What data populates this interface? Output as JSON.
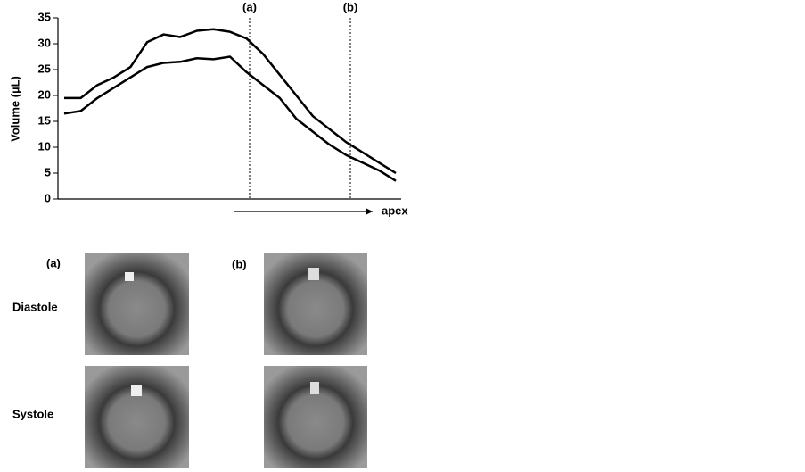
{
  "chart_data": {
    "type": "line",
    "y_label": "Volume (µL)",
    "categories": [
      null,
      null,
      null,
      null,
      null,
      null,
      null,
      null,
      null,
      null,
      null,
      null,
      null,
      null,
      null,
      null,
      null,
      null,
      null,
      null,
      null
    ],
    "series": [
      {
        "color": "#000000",
        "values": [
          19.5,
          19.5,
          22,
          23.5,
          25.5,
          30.3,
          31.8,
          31.3,
          32.5,
          32.8,
          32.3,
          31,
          28,
          24,
          20,
          16,
          13.5,
          11,
          9,
          7,
          5
        ]
      },
      {
        "color": "#000000",
        "values": [
          16.5,
          17,
          19.5,
          21.5,
          23.5,
          25.5,
          26.3,
          26.5,
          27.2,
          27,
          27.5,
          24.5,
          22,
          19.5,
          15.5,
          13,
          10.5,
          8.5,
          7,
          5.5,
          3.5
        ]
      }
    ],
    "ylim": [
      0,
      35
    ],
    "yticks": [
      0,
      5,
      10,
      15,
      20,
      25,
      30,
      35
    ],
    "grid": false,
    "annotations": [
      "(a)",
      "(b)"
    ],
    "arrow_label": "apex"
  },
  "panels": {
    "columns": [
      "(a)",
      "(b)"
    ],
    "rows": [
      "Diastole",
      "Systole"
    ]
  }
}
